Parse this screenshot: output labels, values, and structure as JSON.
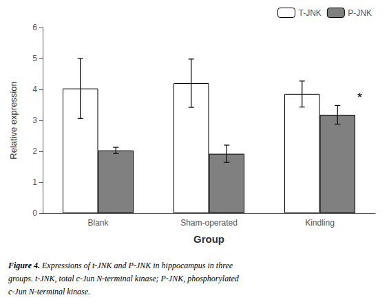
{
  "chart_data": {
    "type": "bar",
    "categories": [
      "Blank",
      "Sham-operated",
      "Kindling"
    ],
    "series": [
      {
        "name": "T-JNK",
        "color": "#ffffff",
        "values": [
          4.03,
          4.2,
          3.85
        ],
        "errors": [
          0.97,
          0.78,
          0.42
        ]
      },
      {
        "name": "P-JNK",
        "color": "#808080",
        "values": [
          2.03,
          1.92,
          3.18
        ],
        "errors": [
          0.1,
          0.28,
          0.3
        ]
      }
    ],
    "xlabel": "Group",
    "ylabel": "Relative expression",
    "ylim": [
      0,
      6
    ],
    "yticks": [
      0,
      1,
      2,
      3,
      4,
      5,
      6
    ],
    "grid": false,
    "legend": "upper right",
    "annotations": [
      {
        "text": "*",
        "category": "Kindling",
        "series": "P-JNK"
      }
    ],
    "caption_bold": "Figure 4.",
    "caption": " Expressions of t-JNK and P-JNK in hippocampus in three\ngroups. t-JNK, total c-Jun N-terminal kinase; P-JNK, phosphorylated\nc-Jun N-terminal kinase."
  }
}
